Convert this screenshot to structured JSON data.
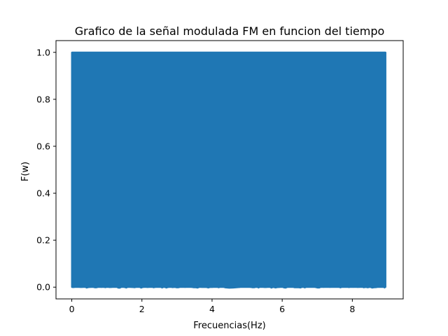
{
  "chart_data": {
    "type": "line",
    "title": "Grafico de la señal modulada FM en funcion del tiempo",
    "xlabel": "Frecuencias(Hz)",
    "ylabel": "F(w)",
    "xlim": [
      -0.45,
      9.45
    ],
    "ylim": [
      -0.05,
      1.05
    ],
    "xticks": [
      0,
      2,
      4,
      6,
      8
    ],
    "yticks": [
      0.0,
      0.2,
      0.4,
      0.6,
      0.8,
      1.0
    ],
    "xtick_labels": [
      "0",
      "2",
      "4",
      "6",
      "8"
    ],
    "ytick_labels": [
      "0.0",
      "0.2",
      "0.4",
      "0.6",
      "0.8",
      "1.0"
    ],
    "series": [
      {
        "color": "#1f77b4",
        "x_range": [
          0,
          8.95
        ],
        "y_range": [
          0.0,
          1.0
        ],
        "description_of_shape": "dense oscillation filling the full band"
      }
    ],
    "grid": false,
    "legend": "none"
  }
}
